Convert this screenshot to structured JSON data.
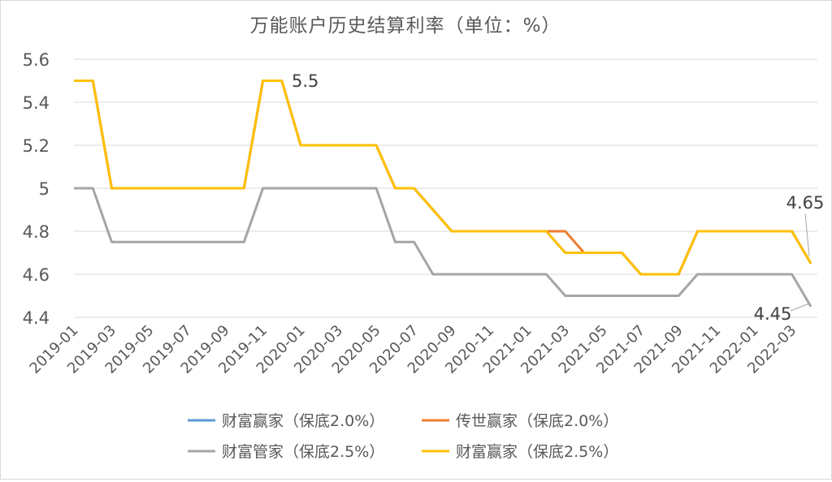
{
  "chart_data": {
    "type": "line",
    "title": "万能账户历史结算利率（单位：%）",
    "xlabel": "",
    "ylabel": "",
    "ylim": [
      4.4,
      5.6
    ],
    "yticks": [
      4.4,
      4.6,
      4.8,
      5,
      5.2,
      5.4,
      5.6
    ],
    "ytick_labels": [
      "4.4",
      "4.6",
      "4.8",
      "5",
      "5.2",
      "5.4",
      "5.6"
    ],
    "grid": true,
    "legend_position": "bottom",
    "x": [
      "2019-01",
      "2019-02",
      "2019-03",
      "2019-04",
      "2019-05",
      "2019-06",
      "2019-07",
      "2019-08",
      "2019-09",
      "2019-10",
      "2019-11",
      "2019-12",
      "2020-01",
      "2020-02",
      "2020-03",
      "2020-04",
      "2020-05",
      "2020-06",
      "2020-07",
      "2020-08",
      "2020-09",
      "2020-10",
      "2020-11",
      "2020-12",
      "2021-01",
      "2021-02",
      "2021-03",
      "2021-04",
      "2021-05",
      "2021-06",
      "2021-07",
      "2021-08",
      "2021-09",
      "2021-10",
      "2021-11",
      "2021-12",
      "2022-01",
      "2022-02",
      "2022-03",
      "2022-04"
    ],
    "x_tick_labels": [
      "2019-01",
      "2019-03",
      "2019-05",
      "2019-07",
      "2019-09",
      "2019-11",
      "2020-01",
      "2020-03",
      "2020-05",
      "2020-07",
      "2020-09",
      "2020-11",
      "2021-01",
      "2021-03",
      "2021-05",
      "2021-07",
      "2021-09",
      "2021-11",
      "2022-01",
      "2022-03"
    ],
    "series": [
      {
        "name": "财富赢家（保底2.0%）",
        "color": "#5b9bd5",
        "values": [
          5.5,
          5.5,
          5.0,
          5.0,
          5.0,
          5.0,
          5.0,
          5.0,
          5.0,
          5.0,
          5.5,
          5.5,
          5.2,
          5.2,
          5.2,
          5.2,
          5.2,
          5.0,
          5.0,
          4.9,
          4.8,
          4.8,
          4.8,
          4.8,
          4.8,
          4.8,
          4.7,
          4.7,
          4.7,
          4.7,
          4.6,
          4.6,
          4.6,
          4.8,
          4.8,
          4.8,
          4.8,
          4.8,
          4.8,
          4.65
        ]
      },
      {
        "name": "传世赢家（保底2.0%）",
        "color": "#ed7d31",
        "values": [
          5.5,
          5.5,
          5.0,
          5.0,
          5.0,
          5.0,
          5.0,
          5.0,
          5.0,
          5.0,
          5.5,
          5.5,
          5.2,
          5.2,
          5.2,
          5.2,
          5.2,
          5.0,
          5.0,
          4.9,
          4.8,
          4.8,
          4.8,
          4.8,
          4.8,
          4.8,
          4.8,
          4.7,
          4.7,
          4.7,
          4.6,
          4.6,
          4.6,
          4.8,
          4.8,
          4.8,
          4.8,
          4.8,
          4.8,
          4.65
        ]
      },
      {
        "name": "财富管家（保底2.5%）",
        "color": "#a5a5a5",
        "values": [
          5.0,
          5.0,
          4.75,
          4.75,
          4.75,
          4.75,
          4.75,
          4.75,
          4.75,
          4.75,
          5.0,
          5.0,
          5.0,
          5.0,
          5.0,
          5.0,
          5.0,
          4.75,
          4.75,
          4.6,
          4.6,
          4.6,
          4.6,
          4.6,
          4.6,
          4.6,
          4.5,
          4.5,
          4.5,
          4.5,
          4.5,
          4.5,
          4.5,
          4.6,
          4.6,
          4.6,
          4.6,
          4.6,
          4.6,
          4.45
        ]
      },
      {
        "name": "财富赢家（保底2.5%）",
        "color": "#ffc000",
        "values": [
          5.5,
          5.5,
          5.0,
          5.0,
          5.0,
          5.0,
          5.0,
          5.0,
          5.0,
          5.0,
          5.5,
          5.5,
          5.2,
          5.2,
          5.2,
          5.2,
          5.2,
          5.0,
          5.0,
          4.9,
          4.8,
          4.8,
          4.8,
          4.8,
          4.8,
          4.8,
          4.7,
          4.7,
          4.7,
          4.7,
          4.6,
          4.6,
          4.6,
          4.8,
          4.8,
          4.8,
          4.8,
          4.8,
          4.8,
          4.65
        ]
      }
    ],
    "annotations": [
      {
        "text": "5.5",
        "series": 3,
        "index": 11
      },
      {
        "text": "4.65",
        "series": 3,
        "index": 39
      },
      {
        "text": "4.45",
        "series": 2,
        "index": 39
      }
    ]
  }
}
